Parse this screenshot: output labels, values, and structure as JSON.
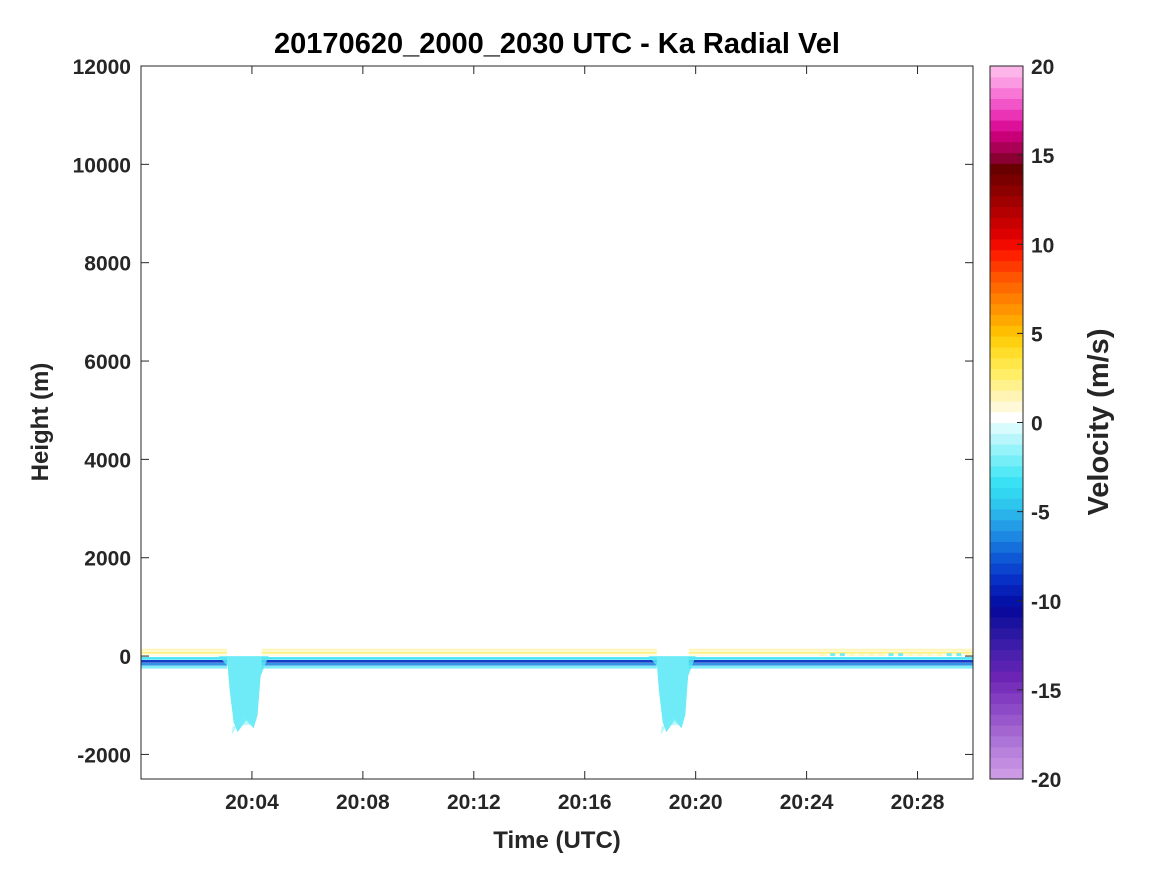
{
  "chart_data": {
    "type": "heatmap",
    "title": "20170620_2000_2030 UTC - Ka Radial Vel",
    "xlabel": "Time (UTC)",
    "ylabel": "Height (m)",
    "x_unit": "minutes after 20:00 UTC",
    "xlim": [
      0,
      30
    ],
    "ylim": [
      -2500,
      12000
    ],
    "x_tick_values": [
      4,
      8,
      12,
      16,
      20,
      24,
      28
    ],
    "x_tick_labels": [
      "20:04",
      "20:08",
      "20:12",
      "20:16",
      "20:20",
      "20:24",
      "20:28"
    ],
    "y_tick_values": [
      -2000,
      0,
      2000,
      4000,
      6000,
      8000,
      10000,
      12000
    ],
    "y_tick_labels": [
      "-2000",
      "0",
      "2000",
      "4000",
      "6000",
      "8000",
      "10000",
      "12000"
    ],
    "grid": false,
    "colorbar": {
      "label": "Velocity (m/s)",
      "range": [
        -20,
        20
      ],
      "tick_values": [
        -20,
        -15,
        -10,
        -5,
        0,
        5,
        10,
        15,
        20
      ],
      "tick_labels": [
        "-20",
        "-15",
        "-10",
        "-5",
        "0",
        "5",
        "10",
        "15",
        "20"
      ],
      "colors": [
        "#cc99e5",
        "#c28de0",
        "#b881dc",
        "#ad74d7",
        "#a366d1",
        "#9858cb",
        "#8d4ac6",
        "#823dc0",
        "#7730ba",
        "#6b24b3",
        "#5a22b0",
        "#4a20ad",
        "#3a1ca8",
        "#2a18a3",
        "#1a129e",
        "#0b0a9c",
        "#0512a8",
        "#0620b8",
        "#0830c6",
        "#0b45cf",
        "#1059d6",
        "#1670dc",
        "#1d88e2",
        "#239de6",
        "#2ab2ea",
        "#2fc6ee",
        "#33d6f1",
        "#3ae1f4",
        "#55e8f6",
        "#75eef8",
        "#95f3fa",
        "#b8f6fb",
        "#d8fbfd",
        "#ffffff",
        "#fff9d8",
        "#fff4b3",
        "#fff28c",
        "#ffee66",
        "#ffe74a",
        "#ffdd2a",
        "#ffd010",
        "#ffbf00",
        "#ffa800",
        "#ff9400",
        "#ff7f00",
        "#ff6a00",
        "#ff5400",
        "#ff3a00",
        "#ff2000",
        "#f20a00",
        "#dd0000",
        "#c80000",
        "#b40000",
        "#a00000",
        "#8c0000",
        "#7a0000",
        "#690000",
        "#8a0033",
        "#aa0055",
        "#c80077",
        "#dd1199",
        "#ea33b5",
        "#f255c8",
        "#f877d6",
        "#fb99e2",
        "#fdb5ea"
      ]
    },
    "features": [
      {
        "name": "surface-band",
        "x": [
          0,
          30
        ],
        "height_m": [
          -250,
          250
        ],
        "upper_velocity": 2,
        "lower_velocity": -7
      },
      {
        "name": "dip-1",
        "x": [
          2.8,
          4.6
        ],
        "height_m": [
          -1550,
          0
        ],
        "velocity": -3
      },
      {
        "name": "dip-2",
        "x": [
          18.3,
          20.0
        ],
        "height_m": [
          -1550,
          0
        ],
        "velocity": -3
      }
    ]
  }
}
